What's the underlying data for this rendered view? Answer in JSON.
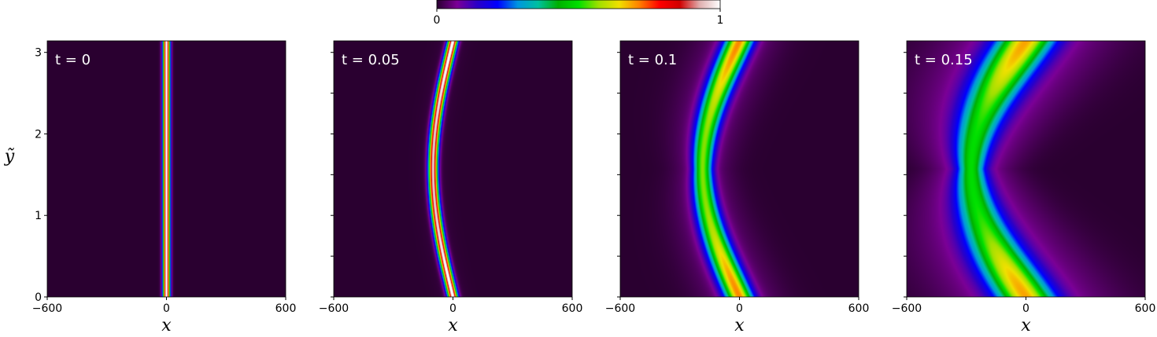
{
  "colorbar": {
    "label_min": "0",
    "label_max": "1",
    "colormap_stops": [
      "#2a0030",
      "#7b0096",
      "#2a00c8",
      "#0000ff",
      "#0096e0",
      "#00c0a0",
      "#00b000",
      "#00e000",
      "#a0e000",
      "#f0e000",
      "#ff8000",
      "#ff0000",
      "#d00000",
      "#e0b0b0",
      "#ffffff"
    ]
  },
  "chart_data": [
    {
      "type": "heatmap",
      "title": "t = 0",
      "xlabel": "x",
      "ylabel": "ỹ",
      "xlim": [
        -600,
        600
      ],
      "ylim": [
        0,
        3.14159
      ],
      "xticks": [
        "−600",
        "0",
        "600"
      ],
      "yticks": [
        "0",
        "1",
        "2",
        "3"
      ],
      "value_range": [
        0,
        1
      ],
      "ridge": {
        "center_x": 0,
        "amplitude_x": 0,
        "width": 12,
        "peak": 1.0,
        "spread": 0
      }
    },
    {
      "type": "heatmap",
      "title": "t = 0.05",
      "xlabel": "x",
      "ylabel": "",
      "xlim": [
        -600,
        600
      ],
      "ylim": [
        0,
        3.14159
      ],
      "xticks": [
        "−600",
        "0",
        "600"
      ],
      "yticks": [],
      "value_range": [
        0,
        1
      ],
      "ridge": {
        "center_x": 0,
        "amplitude_x": 100,
        "width": 16,
        "peak": 0.95,
        "spread": 0.1
      }
    },
    {
      "type": "heatmap",
      "title": "t = 0.1",
      "xlabel": "x",
      "ylabel": "",
      "xlim": [
        -600,
        600
      ],
      "ylim": [
        0,
        3.14159
      ],
      "xticks": [
        "−600",
        "0",
        "600"
      ],
      "yticks": [],
      "value_range": [
        0,
        1
      ],
      "ridge": {
        "center_x": 0,
        "amplitude_x": 185,
        "width": 32,
        "peak": 0.5,
        "spread": 0.5
      }
    },
    {
      "type": "heatmap",
      "title": "t = 0.15",
      "xlabel": "x",
      "ylabel": "",
      "xlim": [
        -600,
        600
      ],
      "ylim": [
        0,
        3.14159
      ],
      "xticks": [
        "−600",
        "0",
        "600"
      ],
      "yticks": [],
      "value_range": [
        0,
        1
      ],
      "ridge": {
        "center_x": 0,
        "amplitude_x": 275,
        "width": 45,
        "peak": 0.4,
        "spread": 0.8
      }
    }
  ]
}
